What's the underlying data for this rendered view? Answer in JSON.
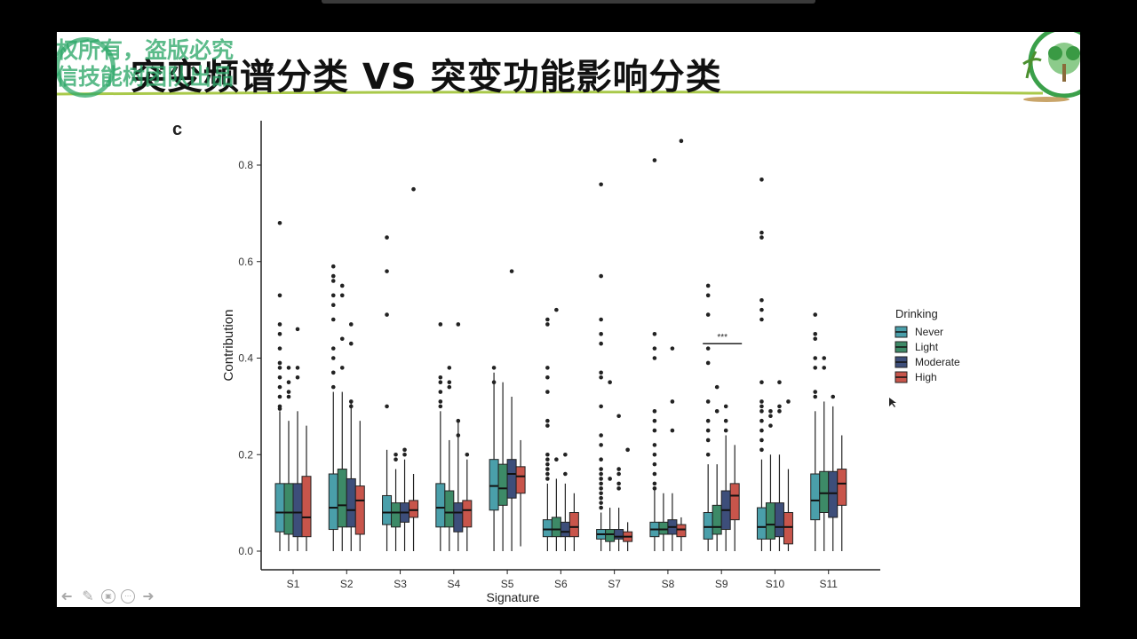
{
  "slide": {
    "title": "突变频谱分类 VS 突变功能影响分类",
    "watermark_line1": "版权所有，盗版必究",
    "watermark_line2": "生信技能树团队出品"
  },
  "chart_data": {
    "type": "boxplot",
    "panel_label": "c",
    "xlabel": "Signature",
    "ylabel": "Contribution",
    "ylim": [
      0,
      0.85
    ],
    "yticks": [
      "0.0",
      "0.2",
      "0.4",
      "0.6",
      "0.8"
    ],
    "ytick_values": [
      0,
      0.2,
      0.4,
      0.6,
      0.8
    ],
    "categories": [
      "S1",
      "S2",
      "S3",
      "S4",
      "S5",
      "S6",
      "S7",
      "S8",
      "S9",
      "S10",
      "S11"
    ],
    "legend_title": "Drinking",
    "legend_placement": "right",
    "grid": false,
    "series": [
      {
        "name": "Never",
        "color": "#4a9faa",
        "boxes": [
          [
            0.0,
            0.04,
            0.08,
            0.14,
            0.29
          ],
          [
            0.0,
            0.045,
            0.09,
            0.16,
            0.33
          ],
          [
            0.0,
            0.055,
            0.08,
            0.115,
            0.21
          ],
          [
            0.0,
            0.05,
            0.09,
            0.14,
            0.29
          ],
          [
            0.0,
            0.085,
            0.135,
            0.19,
            0.37
          ],
          [
            0.0,
            0.03,
            0.045,
            0.065,
            0.14
          ],
          [
            0.0,
            0.025,
            0.035,
            0.045,
            0.08
          ],
          [
            0.0,
            0.03,
            0.045,
            0.06,
            0.13
          ],
          [
            0.0,
            0.025,
            0.05,
            0.08,
            0.18
          ],
          [
            0.0,
            0.025,
            0.05,
            0.09,
            0.19
          ],
          [
            0.0,
            0.065,
            0.105,
            0.16,
            0.29
          ]
        ],
        "outliers": [
          [
            0.68,
            0.53,
            0.47,
            0.45,
            0.42,
            0.39,
            0.38,
            0.36,
            0.34,
            0.32,
            0.3,
            0.295
          ],
          [
            0.59,
            0.57,
            0.56,
            0.53,
            0.51,
            0.48,
            0.42,
            0.4,
            0.37,
            0.34
          ],
          [
            0.65,
            0.58,
            0.49,
            0.3
          ],
          [
            0.47,
            0.36,
            0.35,
            0.33,
            0.31,
            0.3
          ],
          [
            0.38,
            0.35
          ],
          [
            0.48,
            0.47,
            0.38,
            0.36,
            0.33,
            0.27,
            0.26,
            0.2,
            0.19,
            0.18,
            0.17,
            0.16,
            0.15
          ],
          [
            0.76,
            0.57,
            0.48,
            0.45,
            0.43,
            0.37,
            0.36,
            0.3,
            0.24,
            0.22,
            0.19,
            0.17,
            0.16,
            0.15,
            0.14,
            0.13,
            0.12,
            0.11,
            0.1,
            0.09
          ],
          [
            0.81,
            0.45,
            0.42,
            0.4,
            0.29,
            0.27,
            0.25,
            0.22,
            0.2,
            0.18,
            0.16,
            0.14,
            0.13
          ],
          [
            0.55,
            0.53,
            0.49,
            0.42,
            0.39,
            0.31,
            0.27,
            0.25,
            0.23,
            0.2
          ],
          [
            0.77,
            0.66,
            0.65,
            0.52,
            0.5,
            0.48,
            0.35,
            0.31,
            0.3,
            0.29,
            0.27,
            0.25,
            0.23,
            0.21
          ],
          [
            0.49,
            0.45,
            0.44,
            0.4,
            0.38,
            0.33,
            0.32
          ]
        ]
      },
      {
        "name": "Light",
        "color": "#3d8a67",
        "boxes": [
          [
            0.0,
            0.035,
            0.08,
            0.14,
            0.27
          ],
          [
            0.0,
            0.05,
            0.095,
            0.17,
            0.33
          ],
          [
            0.0,
            0.05,
            0.08,
            0.1,
            0.17
          ],
          [
            0.0,
            0.05,
            0.08,
            0.125,
            0.23
          ],
          [
            0.0,
            0.095,
            0.13,
            0.18,
            0.35
          ],
          [
            0.0,
            0.03,
            0.045,
            0.07,
            0.15
          ],
          [
            0.0,
            0.02,
            0.035,
            0.045,
            0.09
          ],
          [
            0.0,
            0.035,
            0.045,
            0.06,
            0.12
          ],
          [
            0.0,
            0.035,
            0.05,
            0.095,
            0.18
          ],
          [
            0.0,
            0.025,
            0.055,
            0.1,
            0.2
          ],
          [
            0.0,
            0.08,
            0.12,
            0.165,
            0.31
          ]
        ],
        "outliers": [
          [
            0.38,
            0.35,
            0.33,
            0.32
          ],
          [
            0.55,
            0.53,
            0.44,
            0.38
          ],
          [
            0.2,
            0.19
          ],
          [
            0.38,
            0.35,
            0.34
          ],
          [],
          [
            0.5,
            0.19
          ],
          [
            0.35,
            0.15
          ],
          [],
          [
            0.34,
            0.29
          ],
          [
            0.29,
            0.28,
            0.26
          ],
          [
            0.4,
            0.38
          ]
        ]
      },
      {
        "name": "Moderate",
        "color": "#3d4e7a",
        "boxes": [
          [
            0.0,
            0.03,
            0.08,
            0.14,
            0.29
          ],
          [
            0.0,
            0.05,
            0.085,
            0.15,
            0.31
          ],
          [
            0.0,
            0.06,
            0.08,
            0.1,
            0.19
          ],
          [
            0.0,
            0.04,
            0.08,
            0.1,
            0.27
          ],
          [
            0.0,
            0.11,
            0.16,
            0.19,
            0.32
          ],
          [
            0.0,
            0.03,
            0.04,
            0.06,
            0.14
          ],
          [
            0.0,
            0.025,
            0.03,
            0.045,
            0.09
          ],
          [
            0.0,
            0.035,
            0.05,
            0.065,
            0.12
          ],
          [
            0.0,
            0.045,
            0.085,
            0.125,
            0.24
          ],
          [
            0.0,
            0.03,
            0.05,
            0.1,
            0.2
          ],
          [
            0.0,
            0.07,
            0.12,
            0.165,
            0.3
          ]
        ],
        "outliers": [
          [
            0.46,
            0.38,
            0.36
          ],
          [
            0.47,
            0.43,
            0.31,
            0.3
          ],
          [
            0.21,
            0.2
          ],
          [
            0.47,
            0.27,
            0.24
          ],
          [
            0.58
          ],
          [
            0.2,
            0.16
          ],
          [
            0.28,
            0.17,
            0.16,
            0.14,
            0.13
          ],
          [
            0.42,
            0.31,
            0.25
          ],
          [
            0.3,
            0.27,
            0.25
          ],
          [
            0.35,
            0.3,
            0.29
          ],
          [
            0.32
          ]
        ]
      },
      {
        "name": "High",
        "color": "#c8554b",
        "boxes": [
          [
            0.0,
            0.03,
            0.07,
            0.155,
            0.26
          ],
          [
            0.0,
            0.035,
            0.105,
            0.135,
            0.27
          ],
          [
            0.0,
            0.07,
            0.085,
            0.105,
            0.16
          ],
          [
            0.0,
            0.05,
            0.085,
            0.105,
            0.19
          ],
          [
            0.01,
            0.12,
            0.155,
            0.175,
            0.23
          ],
          [
            0.0,
            0.03,
            0.05,
            0.08,
            0.12
          ],
          [
            0.0,
            0.02,
            0.03,
            0.04,
            0.06
          ],
          [
            0.0,
            0.03,
            0.045,
            0.055,
            0.07
          ],
          [
            0.0,
            0.065,
            0.115,
            0.14,
            0.22
          ],
          [
            0.0,
            0.015,
            0.05,
            0.08,
            0.17
          ],
          [
            0.0,
            0.095,
            0.14,
            0.17,
            0.24
          ]
        ],
        "outliers": [
          [],
          [],
          [
            0.75
          ],
          [
            0.2
          ],
          [],
          [],
          [
            0.21
          ],
          [
            0.85
          ],
          [],
          [
            0.31
          ],
          []
        ]
      }
    ],
    "annotations": [
      {
        "text": "***",
        "category": "S9",
        "y": 0.43
      }
    ]
  }
}
